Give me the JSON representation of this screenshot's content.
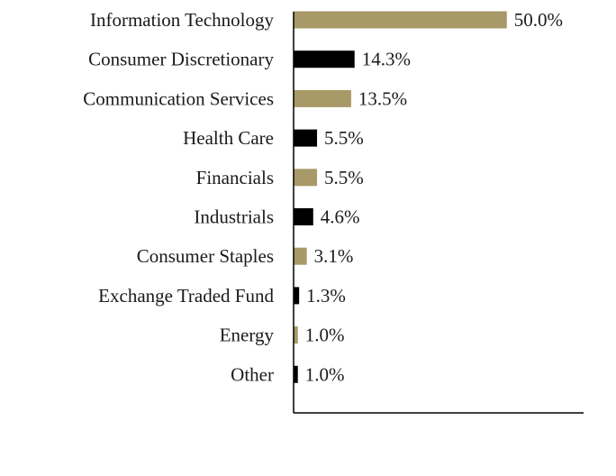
{
  "chart_data": {
    "type": "bar",
    "orientation": "horizontal",
    "title": "",
    "xlabel": "",
    "ylabel": "",
    "categories": [
      "Information Technology",
      "Consumer Discretionary",
      "Communication Services",
      "Health Care",
      "Financials",
      "Industrials",
      "Consumer Staples",
      "Exchange Traded Fund",
      "Energy",
      "Other"
    ],
    "values": [
      50.0,
      14.3,
      13.5,
      5.5,
      5.5,
      4.6,
      3.1,
      1.3,
      1.0,
      1.0
    ],
    "value_labels": [
      "50.0%",
      "14.3%",
      "13.5%",
      "5.5%",
      "5.5%",
      "4.6%",
      "3.1%",
      "1.3%",
      "1.0%",
      "1.0%"
    ],
    "bar_colors": [
      "#a89a68",
      "#000000"
    ],
    "xlim": [
      0,
      68
    ],
    "grid": false,
    "legend": "none"
  }
}
